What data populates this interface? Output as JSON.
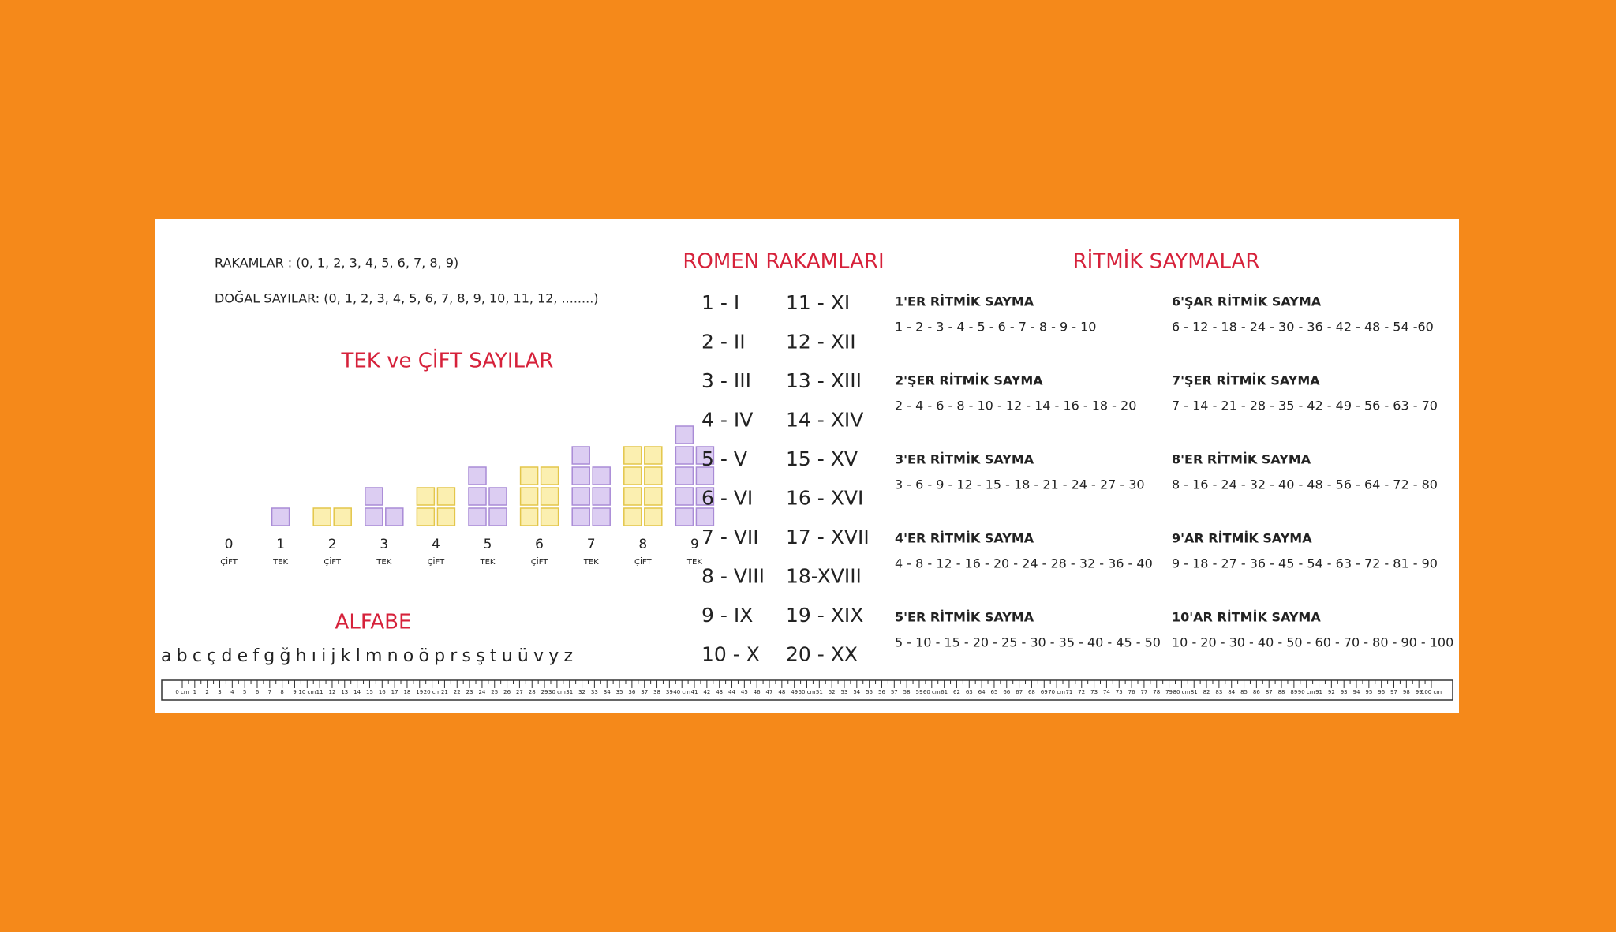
{
  "digits_line": "RAKAMLAR : (0, 1, 2, 3, 4, 5, 6, 7, 8, 9)",
  "natural_line": "DOĞAL SAYILAR: (0, 1, 2, 3, 4, 5, 6, 7, 8, 9, 10, 11, 12, ........)",
  "odd_even": {
    "title": "TEK ve ÇİFT SAYILAR",
    "numbers": [
      0,
      1,
      2,
      3,
      4,
      5,
      6,
      7,
      8,
      9
    ],
    "parity": [
      "ÇİFT",
      "TEK",
      "ÇİFT",
      "TEK",
      "ÇİFT",
      "TEK",
      "ÇİFT",
      "TEK",
      "ÇİFT",
      "TEK"
    ]
  },
  "alphabet": {
    "title": "ALFABE",
    "letters": "a b c ç d e f g ğ h ı i j k l m n o ö p r s ş t u ü v y z"
  },
  "roman": {
    "title": "ROMEN RAKAMLARI",
    "left": [
      "1 - I",
      "2 - II",
      "3 - III",
      "4 - IV",
      "5 - V",
      "6 - VI",
      "7 - VII",
      "8 - VIII",
      "9 - IX",
      "10 - X"
    ],
    "right": [
      "11 - XI",
      "12 - XII",
      "13 - XIII",
      "14 - XIV",
      "15 - XV",
      "16 - XVI",
      "17 - XVII",
      "18-XVIII",
      "19 - XIX",
      "20 - XX"
    ]
  },
  "rhythm": {
    "title": "RİTMİK SAYMALAR",
    "items": [
      {
        "title": "1'ER RİTMİK SAYMA",
        "sequence": "1 - 2 - 3 - 4 - 5 - 6 - 7 - 8 - 9 - 10"
      },
      {
        "title": "2'ŞER RİTMİK SAYMA",
        "sequence": "2 - 4 - 6 - 8 - 10 - 12 - 14 - 16 - 18 - 20"
      },
      {
        "title": "3'ER RİTMİK SAYMA",
        "sequence": "3 - 6 - 9 - 12 - 15 - 18 - 21 - 24 - 27 - 30"
      },
      {
        "title": "4'ER RİTMİK SAYMA",
        "sequence": "4 - 8 - 12 - 16 - 20 - 24 - 28 - 32 - 36 - 40"
      },
      {
        "title": "5'ER RİTMİK SAYMA",
        "sequence": "5 - 10 - 15 - 20 - 25 - 30 - 35 - 40 - 45 - 50"
      },
      {
        "title": "6'ŞAR RİTMİK SAYMA",
        "sequence": "6 - 12 - 18 - 24 - 30 - 36 - 42 - 48 - 54 -60"
      },
      {
        "title": "7'ŞER RİTMİK SAYMA",
        "sequence": "7 - 14 - 21 - 28 - 35 - 42 - 49 - 56 - 63 - 70"
      },
      {
        "title": "8'ER RİTMİK SAYMA",
        "sequence": "8 - 16 - 24 - 32 - 40 - 48 - 56 - 64 - 72 - 80"
      },
      {
        "title": "9'AR RİTMİK SAYMA",
        "sequence": "9 - 18 - 27 - 36 - 45 - 54 - 63 - 72 - 81 - 90"
      },
      {
        "title": "10'AR RİTMİK SAYMA",
        "sequence": "10 - 20 - 30 - 40 - 50 - 60 - 70 - 80 - 90 - 100"
      }
    ]
  },
  "ruler": {
    "labels": [
      "0 cm",
      "1",
      "2",
      "3",
      "4",
      "5",
      "6",
      "7",
      "8",
      "9",
      "10 cm",
      "11",
      "12",
      "13",
      "14",
      "15",
      "16",
      "17",
      "18",
      "19",
      "20 cm",
      "21",
      "22",
      "23",
      "24",
      "25",
      "26",
      "27",
      "28",
      "29",
      "30 cm",
      "31",
      "32",
      "33",
      "34",
      "35",
      "36",
      "37",
      "38",
      "39",
      "40 cm",
      "41",
      "42",
      "43",
      "44",
      "45",
      "46",
      "47",
      "48",
      "49",
      "50 cm",
      "51",
      "52",
      "53",
      "54",
      "55",
      "56",
      "57",
      "58",
      "59",
      "60 cm",
      "61",
      "62",
      "63",
      "64",
      "65",
      "66",
      "67",
      "68",
      "69",
      "70 cm",
      "71",
      "72",
      "73",
      "74",
      "75",
      "76",
      "77",
      "78",
      "79",
      "80 cm",
      "81",
      "82",
      "83",
      "84",
      "85",
      "86",
      "87",
      "88",
      "89",
      "90 cm",
      "91",
      "92",
      "93",
      "94",
      "95",
      "96",
      "97",
      "98",
      "99",
      "100 cm"
    ]
  }
}
